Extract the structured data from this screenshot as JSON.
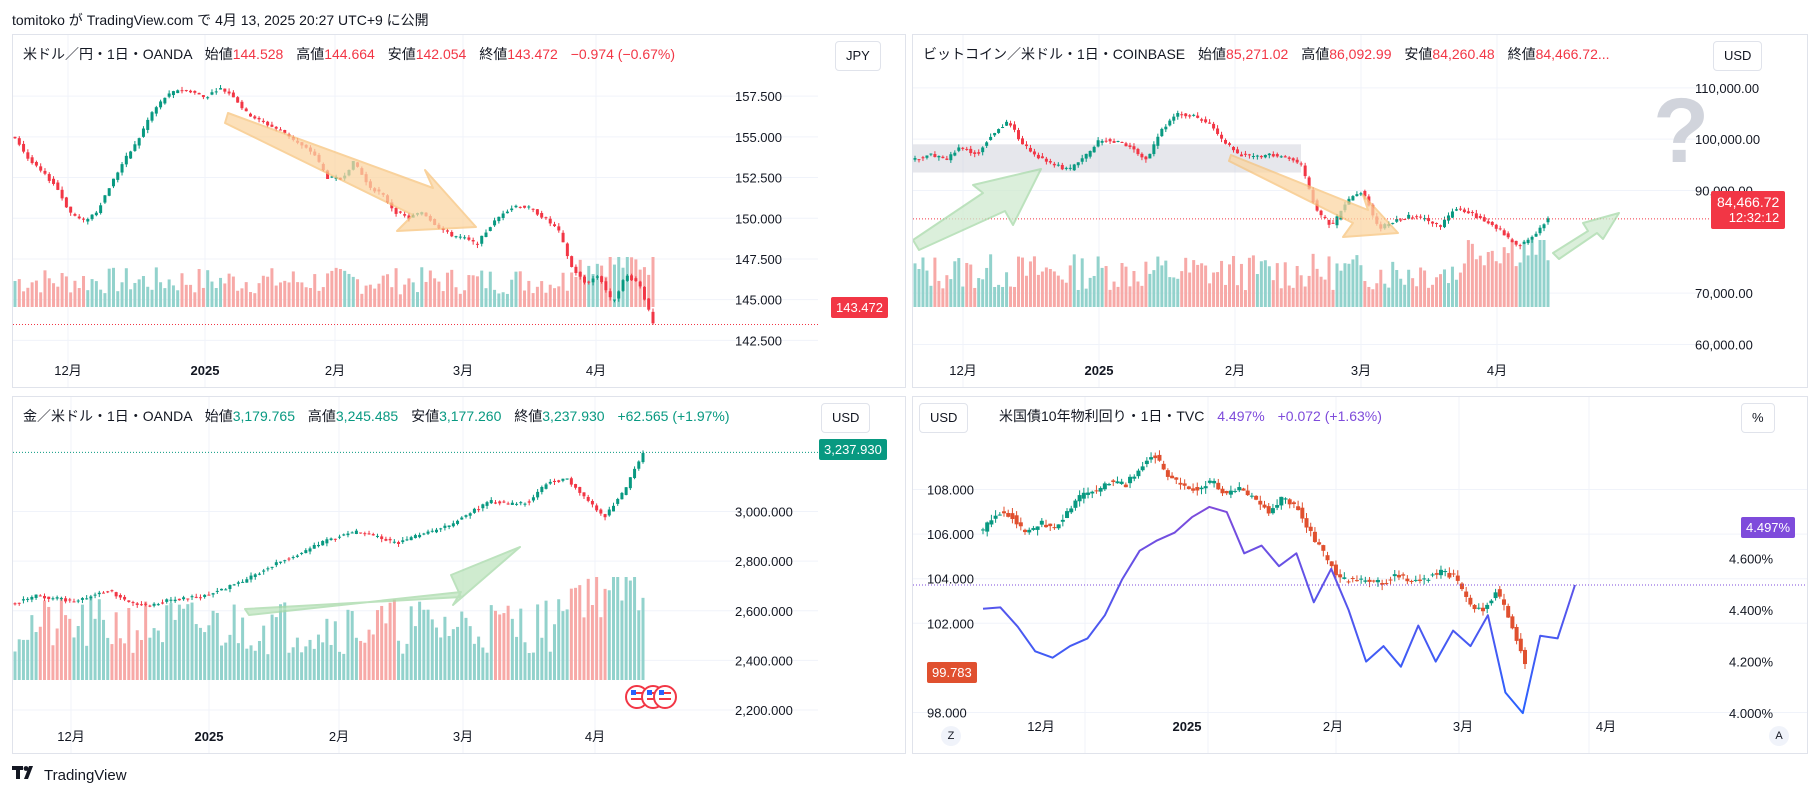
{
  "header": {
    "text": "tomitoko が TradingView.com で 4月 13, 2025 20:27 UTC+9 に公開"
  },
  "footer": {
    "logo_icon": "tradingview-logo-icon",
    "brand": "TradingView"
  },
  "colors": {
    "up": "#089981",
    "down": "#f23645",
    "vol_up": "#92d2cc",
    "vol_down": "#f7a9a7",
    "orange_arrow": "#f7c37c",
    "green_arrow": "#a6d9a8",
    "yield_blue": "#2962ff",
    "yield_purple": "#7e4bdb"
  },
  "panels": {
    "usdjpy": {
      "symbol": "米ドル／円・1日・OANDA",
      "o_label": "始値",
      "o": "144.528",
      "h_label": "高値",
      "h": "144.664",
      "l_label": "安値",
      "l": "142.054",
      "c_label": "終値",
      "c": "143.472",
      "chg": "−0.974 (−0.67%)",
      "currency": "JPY",
      "last_badge": "143.472"
    },
    "btcusd": {
      "symbol": "ビットコイン／米ドル・1日・COINBASE",
      "o_label": "始値",
      "o": "85,271.02",
      "h_label": "高値",
      "h": "86,092.99",
      "l_label": "安値",
      "l": "84,260.48",
      "c_label": "終値",
      "c": "84,466.72...",
      "currency": "USD",
      "last_badge": "84,466.72",
      "countdown": "12:32:12",
      "question_mark": "?"
    },
    "xauusd": {
      "symbol": "金／米ドル・1日・OANDA",
      "o_label": "始値",
      "o": "3,179.765",
      "h_label": "高値",
      "h": "3,245.485",
      "l_label": "安値",
      "l": "3,177.260",
      "c_label": "終値",
      "c": "3,237.930",
      "chg": "+62.565 (+1.97%)",
      "currency": "USD",
      "last_badge": "3,237.930",
      "event_icon": "us-flag-icon"
    },
    "us10y": {
      "symbol": "米国債10年物利回り・1日・TVC",
      "last": "4.497%",
      "chg": "+0.072 (+1.63%)",
      "left_scale": "USD",
      "right_scale": "%",
      "left_badge": "99.783",
      "right_badge": "4.497%",
      "btn_left": "Z",
      "btn_right": "A"
    }
  },
  "chart_data": [
    {
      "type": "candlestick",
      "title": "米ドル／円・1日・OANDA",
      "y_ticks": [
        "157.500",
        "155.000",
        "152.500",
        "150.000",
        "147.500",
        "145.000",
        "142.500"
      ],
      "ylim": [
        141.6,
        158.8
      ],
      "x_ticks": [
        "12月",
        "2025",
        "2月",
        "3月",
        "4月"
      ],
      "close_path": [
        155.0,
        153.6,
        152.8,
        152.0,
        150.4,
        149.8,
        150.4,
        152.0,
        153.5,
        154.7,
        156.4,
        157.4,
        157.9,
        157.8,
        157.4,
        158.0,
        157.6,
        156.5,
        156.0,
        155.6,
        155.2,
        154.5,
        154.0,
        152.5,
        152.4,
        153.5,
        152.0,
        151.5,
        150.4,
        150.0,
        150.4,
        149.6,
        149.0,
        148.8,
        148.4,
        149.5,
        150.4,
        150.8,
        150.6,
        150.0,
        149.3,
        147.0,
        146.0,
        146.5,
        144.8,
        146.5,
        146.0,
        143.5
      ],
      "arrows": [
        "orange-down"
      ],
      "volume": "bars",
      "last": 143.472
    },
    {
      "type": "candlestick",
      "title": "ビットコイン／米ドル・1日・COINBASE",
      "y_ticks": [
        "110,000.00",
        "100,000.00",
        "90,000.00",
        "70,000.00",
        "60,000.00"
      ],
      "ylim": [
        56000,
        112500
      ],
      "x_ticks": [
        "12月",
        "2025",
        "2月",
        "3月",
        "4月"
      ],
      "close_path": [
        96000,
        97000,
        96000,
        98500,
        97000,
        101000,
        103500,
        99000,
        96500,
        95000,
        94000,
        96500,
        100000,
        99500,
        98500,
        96000,
        102000,
        105000,
        104500,
        103000,
        99500,
        97000,
        96500,
        97000,
        96500,
        95000,
        86000,
        83000,
        88000,
        90000,
        82500,
        84000,
        85000,
        84500,
        83000,
        86500,
        85500,
        84000,
        82000,
        79000,
        81000,
        84500
      ],
      "shaded_range": [
        93500,
        99000
      ],
      "arrows": [
        "green-up",
        "orange-down",
        "green-up"
      ],
      "volume": "bars",
      "last": 84466.72
    },
    {
      "type": "candlestick",
      "title": "金／米ドル・1日・OANDA",
      "y_ticks": [
        "3,000.000",
        "2,800.000",
        "2,600.000",
        "2,400.000",
        "2,200.000"
      ],
      "ylim": [
        2180,
        3300
      ],
      "x_ticks": [
        "12月",
        "2025",
        "2月",
        "3月",
        "4月"
      ],
      "close_path": [
        2630,
        2660,
        2650,
        2640,
        2660,
        2680,
        2630,
        2620,
        2640,
        2650,
        2660,
        2690,
        2720,
        2760,
        2800,
        2830,
        2870,
        2900,
        2920,
        2900,
        2870,
        2900,
        2920,
        2950,
        3000,
        3040,
        3030,
        3040,
        3120,
        3130,
        3050,
        2980,
        3080,
        3238
      ],
      "arrows": [
        "green-up"
      ],
      "volume": "bars",
      "last": 3237.93
    },
    {
      "type": "candlestick+line",
      "title": "米国債10年物利回り・1日・TVC",
      "left_y_ticks": [
        "108.000",
        "106.000",
        "104.000",
        "102.000",
        "98.000"
      ],
      "left_ylim": [
        97.8,
        110.8
      ],
      "right_y_ticks": [
        "4.600%",
        "4.400%",
        "4.200%",
        "4.000%"
      ],
      "right_ylim": [
        3.985,
        5.11
      ],
      "x_ticks": [
        "12月",
        "2025",
        "2月",
        "3月",
        "4月"
      ],
      "candles_close_path": [
        106.2,
        107.0,
        106.8,
        106.0,
        106.5,
        106.3,
        107.0,
        107.8,
        108.0,
        108.4,
        108.2,
        109.0,
        109.6,
        108.6,
        108.2,
        108.0,
        108.4,
        107.8,
        108.0,
        107.6,
        107.0,
        107.6,
        107.2,
        106.0,
        105.0,
        104.0,
        103.9,
        104.0,
        103.8,
        104.2,
        103.9,
        104.0,
        104.3,
        104.1,
        103.0,
        102.5,
        103.5,
        102.0,
        100.2
      ],
      "yield_line": [
        4.405,
        4.41,
        4.335,
        4.24,
        4.215,
        4.26,
        4.29,
        4.38,
        4.52,
        4.63,
        4.67,
        4.7,
        4.76,
        4.8,
        4.78,
        4.62,
        4.65,
        4.57,
        4.62,
        4.43,
        4.56,
        4.4,
        4.2,
        4.26,
        4.18,
        4.34,
        4.2,
        4.32,
        4.26,
        4.38,
        4.08,
        4.0,
        4.3,
        4.29,
        4.497
      ],
      "last_yield": 4.497,
      "last_price": 99.783
    }
  ]
}
